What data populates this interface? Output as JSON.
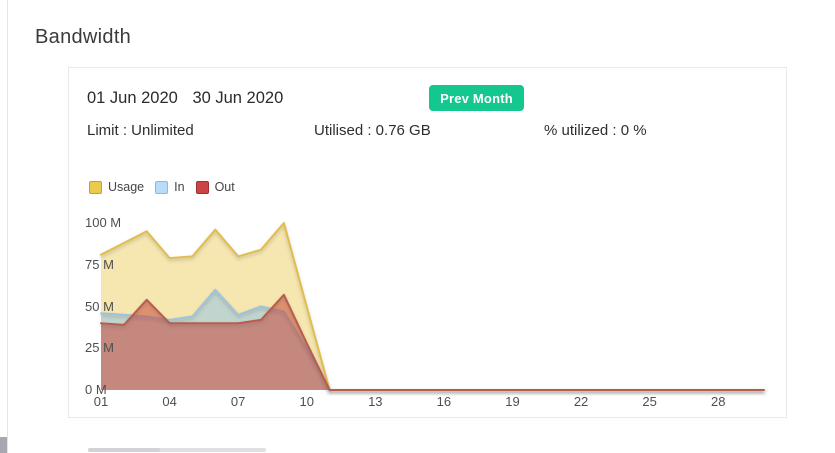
{
  "page": {
    "title": "Bandwidth"
  },
  "card": {
    "date_start": "01 Jun 2020",
    "date_end": "30 Jun 2020",
    "prev_month_label": "Prev Month",
    "button_color": "#13c78e",
    "stats": {
      "limit": "Limit : Unlimited",
      "utilised": "Utilised : 0.76 GB",
      "percent": "% utilized : 0 %"
    }
  },
  "chart_data": {
    "type": "area",
    "title": "",
    "xlabel": "",
    "ylabel": "",
    "unit": "M",
    "ylim": [
      0,
      100
    ],
    "grid": false,
    "legend_position": "top-left",
    "x": [
      1,
      2,
      3,
      4,
      5,
      6,
      7,
      8,
      9,
      10,
      11,
      12,
      13,
      14,
      15,
      16,
      17,
      18,
      19,
      20,
      21,
      22,
      23,
      24,
      25,
      26,
      27,
      28,
      29,
      30
    ],
    "x_ticks": [
      1,
      4,
      7,
      10,
      13,
      16,
      19,
      22,
      25,
      28
    ],
    "x_tick_labels": [
      "01",
      "04",
      "07",
      "10",
      "13",
      "16",
      "19",
      "22",
      "25",
      "28"
    ],
    "y_ticks": [
      0,
      25,
      50,
      75,
      100
    ],
    "y_tick_labels": [
      "0 M",
      "25 M",
      "50 M",
      "75 M",
      "100 M"
    ],
    "series": [
      {
        "name": "Usage",
        "legend_fill": "#ecc94f",
        "legend_border": "#c49f36",
        "line_color": "#e0bd4e",
        "area_fill": "rgba(236,200,80,0.45)",
        "values": [
          81,
          88,
          95,
          79,
          80,
          96,
          80,
          84,
          100,
          50,
          0,
          0,
          0,
          0,
          0,
          0,
          0,
          0,
          0,
          0,
          0,
          0,
          0,
          0,
          0,
          0,
          0,
          0,
          0,
          0
        ]
      },
      {
        "name": "In",
        "legend_fill": "#b8dcf7",
        "legend_border": "#8fb9d9",
        "line_color": "#9fc3da",
        "area_fill": "rgba(140,195,235,0.5)",
        "values": [
          46,
          45,
          44,
          42,
          44,
          60,
          45,
          50,
          47,
          25,
          0,
          0,
          0,
          0,
          0,
          0,
          0,
          0,
          0,
          0,
          0,
          0,
          0,
          0,
          0,
          0,
          0,
          0,
          0,
          0
        ]
      },
      {
        "name": "Out",
        "legend_fill": "#cc4444",
        "legend_border": "#9e3030",
        "line_color": "#b85c4e",
        "area_fill": "rgba(200,60,45,0.5)",
        "values": [
          40,
          39,
          54,
          40,
          40,
          40,
          40,
          42,
          57,
          28,
          0,
          0,
          0,
          0,
          0,
          0,
          0,
          0,
          0,
          0,
          0,
          0,
          0,
          0,
          0,
          0,
          0,
          0,
          0,
          0
        ]
      }
    ]
  }
}
